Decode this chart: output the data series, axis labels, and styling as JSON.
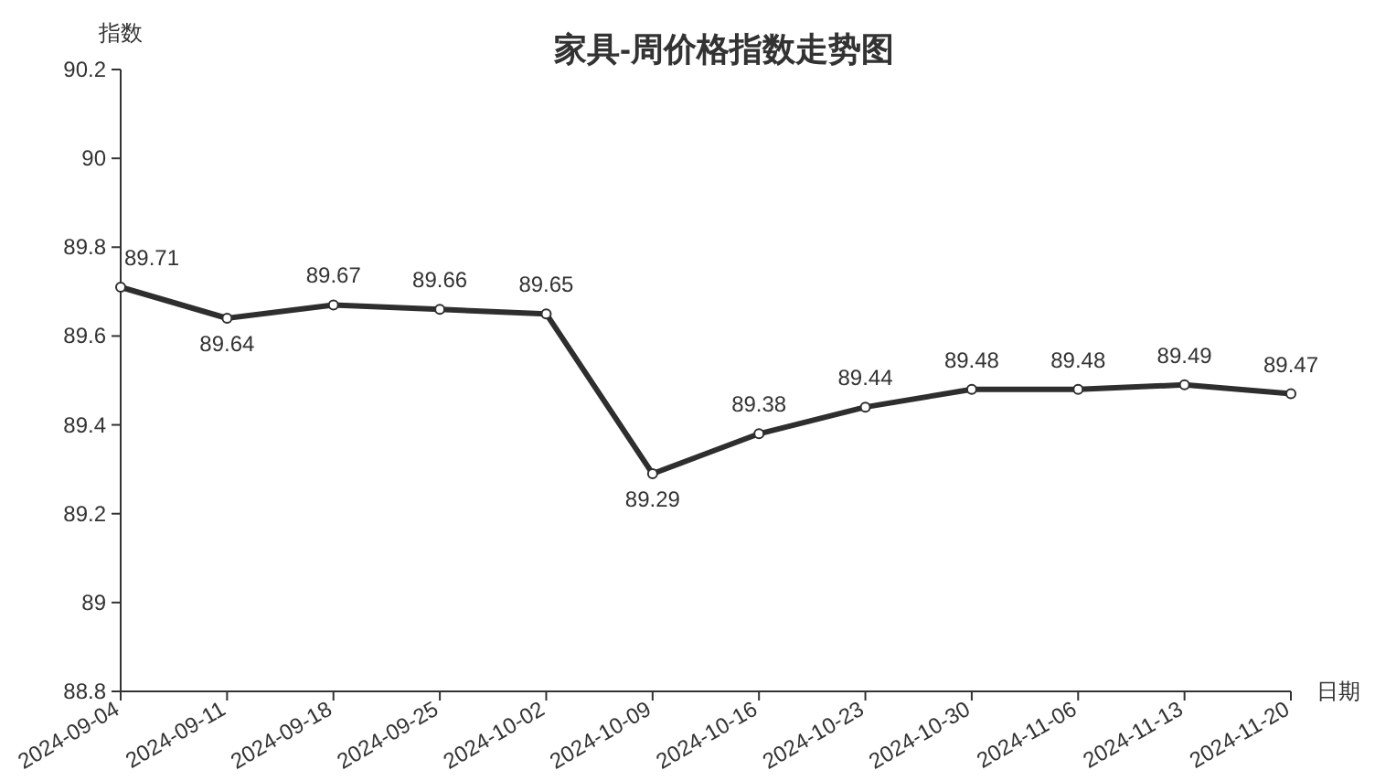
{
  "chart_data": {
    "type": "line",
    "title": "家具-周价格指数走势图",
    "xlabel": "日期",
    "ylabel": "指数",
    "categories": [
      "2024-09-04",
      "2024-09-11",
      "2024-09-18",
      "2024-09-25",
      "2024-10-02",
      "2024-10-09",
      "2024-10-16",
      "2024-10-23",
      "2024-10-30",
      "2024-11-06",
      "2024-11-13",
      "2024-11-20"
    ],
    "series": [
      {
        "color": "#2e2e2e",
        "values": [
          89.71,
          89.64,
          89.67,
          89.66,
          89.65,
          89.29,
          89.38,
          89.44,
          89.48,
          89.48,
          89.49,
          89.47
        ]
      }
    ],
    "ylim": [
      88.8,
      90.2
    ],
    "yticks": [
      88.8,
      89,
      89.2,
      89.4,
      89.6,
      89.8,
      90,
      90.2
    ],
    "marker": "circle",
    "line_style": "solid",
    "data_labels": true,
    "grid": false
  }
}
